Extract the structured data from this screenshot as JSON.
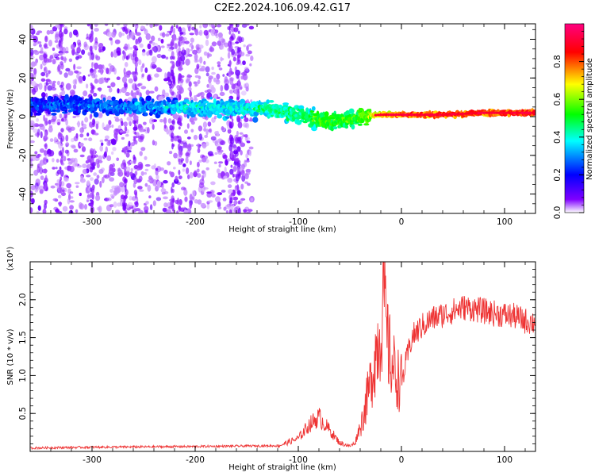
{
  "title": "C2E2.2024.106.09.42.G17",
  "chart_data": [
    {
      "type": "heatmap",
      "xlabel": "Height of straight line (km)",
      "ylabel": "Frequency (Hz)",
      "xlim": [
        -360,
        130
      ],
      "ylim": [
        -50,
        48
      ],
      "x_ticks": [
        -300,
        -200,
        -100,
        0,
        100
      ],
      "y_ticks": [
        -40,
        -20,
        0,
        20,
        40
      ],
      "x_tick_labels": [
        "-300",
        "-200",
        "-100",
        "0",
        "100"
      ],
      "y_tick_labels": [
        "-40",
        "-20",
        "0",
        "20",
        "40"
      ],
      "colorbar": {
        "label": "Normalized spectral amplitude",
        "range": [
          0,
          1
        ],
        "ticks": [
          0.0,
          0.2,
          0.4,
          0.6,
          0.8
        ],
        "tick_labels": [
          "0.0",
          "0.2",
          "0.4",
          "0.6",
          "0.8"
        ],
        "colormap": [
          "#ffffff",
          "#8000ff",
          "#0000ff",
          "#00ffff",
          "#00ff00",
          "#ffff00",
          "#ff0000",
          "#ff0080"
        ]
      },
      "ridge": [
        {
          "x": -360,
          "y": 6,
          "amp": 0.25
        },
        {
          "x": -320,
          "y": 6,
          "amp": 0.28
        },
        {
          "x": -280,
          "y": 5,
          "amp": 0.3
        },
        {
          "x": -240,
          "y": 5,
          "amp": 0.32
        },
        {
          "x": -200,
          "y": 5,
          "amp": 0.38
        },
        {
          "x": -160,
          "y": 4,
          "amp": 0.4
        },
        {
          "x": -130,
          "y": 4,
          "amp": 0.45
        },
        {
          "x": -100,
          "y": 1,
          "amp": 0.48
        },
        {
          "x": -80,
          "y": -2,
          "amp": 0.55
        },
        {
          "x": -60,
          "y": -3,
          "amp": 0.55
        },
        {
          "x": -40,
          "y": 0,
          "amp": 0.55
        },
        {
          "x": -20,
          "y": 1,
          "amp": 0.75
        },
        {
          "x": 0,
          "y": 1,
          "amp": 0.8
        },
        {
          "x": 40,
          "y": 1,
          "amp": 0.85
        },
        {
          "x": 80,
          "y": 2,
          "amp": 0.85
        },
        {
          "x": 130,
          "y": 2,
          "amp": 0.85
        }
      ]
    },
    {
      "type": "line",
      "xlabel": "Height of straight line (km)",
      "ylabel": "SNR (10 * v/v)",
      "y_multiplier_label": "(x10⁴)",
      "xlim": [
        -360,
        130
      ],
      "ylim": [
        0,
        2.5
      ],
      "x_ticks": [
        -300,
        -200,
        -100,
        0,
        100
      ],
      "y_ticks": [
        0.5,
        1.0,
        1.5,
        2.0
      ],
      "x_tick_labels": [
        "-300",
        "-200",
        "-100",
        "0",
        "100"
      ],
      "y_tick_labels": [
        "0.5",
        "1.0",
        "1.5",
        "2.0"
      ],
      "color": "#ee3333",
      "x": [
        -360,
        -300,
        -200,
        -120,
        -100,
        -90,
        -80,
        -70,
        -60,
        -50,
        -45,
        -40,
        -35,
        -30,
        -25,
        -20,
        -17,
        -15,
        -12,
        -10,
        -5,
        0,
        5,
        10,
        20,
        30,
        40,
        50,
        60,
        70,
        80,
        90,
        100,
        110,
        120,
        130
      ],
      "y": [
        0.03,
        0.04,
        0.05,
        0.06,
        0.15,
        0.3,
        0.4,
        0.25,
        0.1,
        0.06,
        0.1,
        0.3,
        0.6,
        0.9,
        1.3,
        1.6,
        2.2,
        1.6,
        1.3,
        1.2,
        1.0,
        0.9,
        1.2,
        1.5,
        1.65,
        1.75,
        1.8,
        1.85,
        1.9,
        1.88,
        1.85,
        1.82,
        1.8,
        1.78,
        1.72,
        1.7
      ]
    }
  ]
}
